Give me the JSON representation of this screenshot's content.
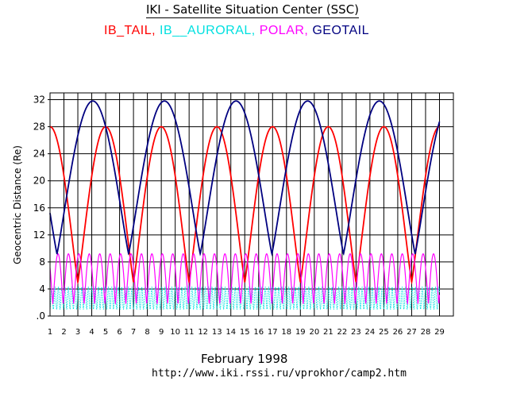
{
  "header": {
    "title": "IKI - Satellite Situation Center (SSC)"
  },
  "legend": {
    "items": [
      {
        "label": "IB_TAIL,",
        "color": "#ff0000"
      },
      {
        "label": "IB__AURORAL,",
        "color": "#00e0e0"
      },
      {
        "label": "POLAR,",
        "color": "#ff00ff"
      },
      {
        "label": "GEOTAIL",
        "color": "#000080"
      }
    ]
  },
  "footer": {
    "month": "February    1998",
    "url": "http://www.iki.rssi.ru/vprokhor/camp2.htm"
  },
  "chart_data": {
    "type": "line",
    "title": "IKI - Satellite Situation Center (SSC)",
    "xlabel": "February    1998",
    "ylabel": "Geocentric Distance (Re)",
    "xlim": [
      1,
      30
    ],
    "ylim": [
      0,
      33
    ],
    "x_ticks": [
      "1",
      "2",
      "3",
      "4",
      "5",
      "6",
      "7",
      "8",
      "9",
      "10",
      "11",
      "12",
      "13",
      "14",
      "15",
      "16",
      "17",
      "18",
      "19",
      "20",
      "21",
      "22",
      "23",
      "24",
      "25",
      "26",
      "27",
      "28",
      "29"
    ],
    "y_ticks": [
      {
        "value": 0,
        "label": ".0"
      },
      {
        "value": 4,
        "label": "4"
      },
      {
        "value": 8,
        "label": "8"
      },
      {
        "value": 12,
        "label": "12"
      },
      {
        "value": 16,
        "label": "16"
      },
      {
        "value": 20,
        "label": "20"
      },
      {
        "value": 24,
        "label": "24"
      },
      {
        "value": 28,
        "label": "28"
      },
      {
        "value": 32,
        "label": "32"
      }
    ],
    "grid": true,
    "series": [
      {
        "name": "IB_TAIL",
        "color": "#ff0000",
        "model": "orbit",
        "period_days": 4.0,
        "perigee_day": 3.0,
        "min": 5.0,
        "max": 28.0,
        "x_end": 29.0
      },
      {
        "name": "IB_AURORAL",
        "color": "#00e0e0",
        "model": "band",
        "period_days": 0.24,
        "min": 1.0,
        "max": 4.3,
        "x_end": 29.0
      },
      {
        "name": "POLAR",
        "color": "#ff00ff",
        "model": "orbit",
        "period_days": 0.75,
        "perigee_day": 1.2,
        "min": 1.8,
        "max": 9.2,
        "x_end": 29.0
      },
      {
        "name": "GEOTAIL",
        "color": "#000080",
        "model": "orbit",
        "period_days": 5.15,
        "perigee_day": 1.5,
        "min": 9.2,
        "max": 31.8,
        "x_end": 29.0
      }
    ]
  }
}
